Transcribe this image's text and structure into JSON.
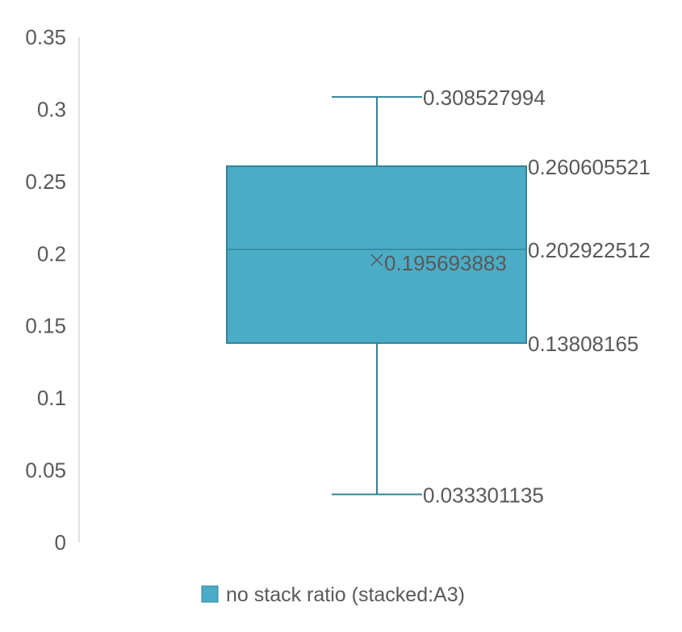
{
  "chart_data": {
    "type": "box",
    "ylim": [
      0,
      0.35
    ],
    "y_ticks": [
      0,
      0.05,
      0.1,
      0.15,
      0.2,
      0.25,
      0.3,
      0.35
    ],
    "y_tick_labels": [
      "0",
      "0.05",
      "0.1",
      "0.15",
      "0.2",
      "0.25",
      "0.3",
      "0.35"
    ],
    "grid": false,
    "legend_position": "bottom",
    "series": [
      {
        "name": "no stack ratio (stacked:A3)",
        "color": "#4BACC6",
        "line_color": "#31849B",
        "whisker_max": 0.308527994,
        "q3": 0.260605521,
        "median": 0.202922512,
        "mean": 0.195693883,
        "q1": 0.13808165,
        "whisker_min": 0.033301135,
        "labels": {
          "whisker_max": "0.308527994",
          "q3": "0.260605521",
          "median": "0.202922512",
          "mean": "0.195693883",
          "q1": "0.13808165",
          "whisker_min": "0.033301135"
        }
      }
    ]
  },
  "legend": {
    "label": "no stack ratio (stacked:A3)"
  }
}
